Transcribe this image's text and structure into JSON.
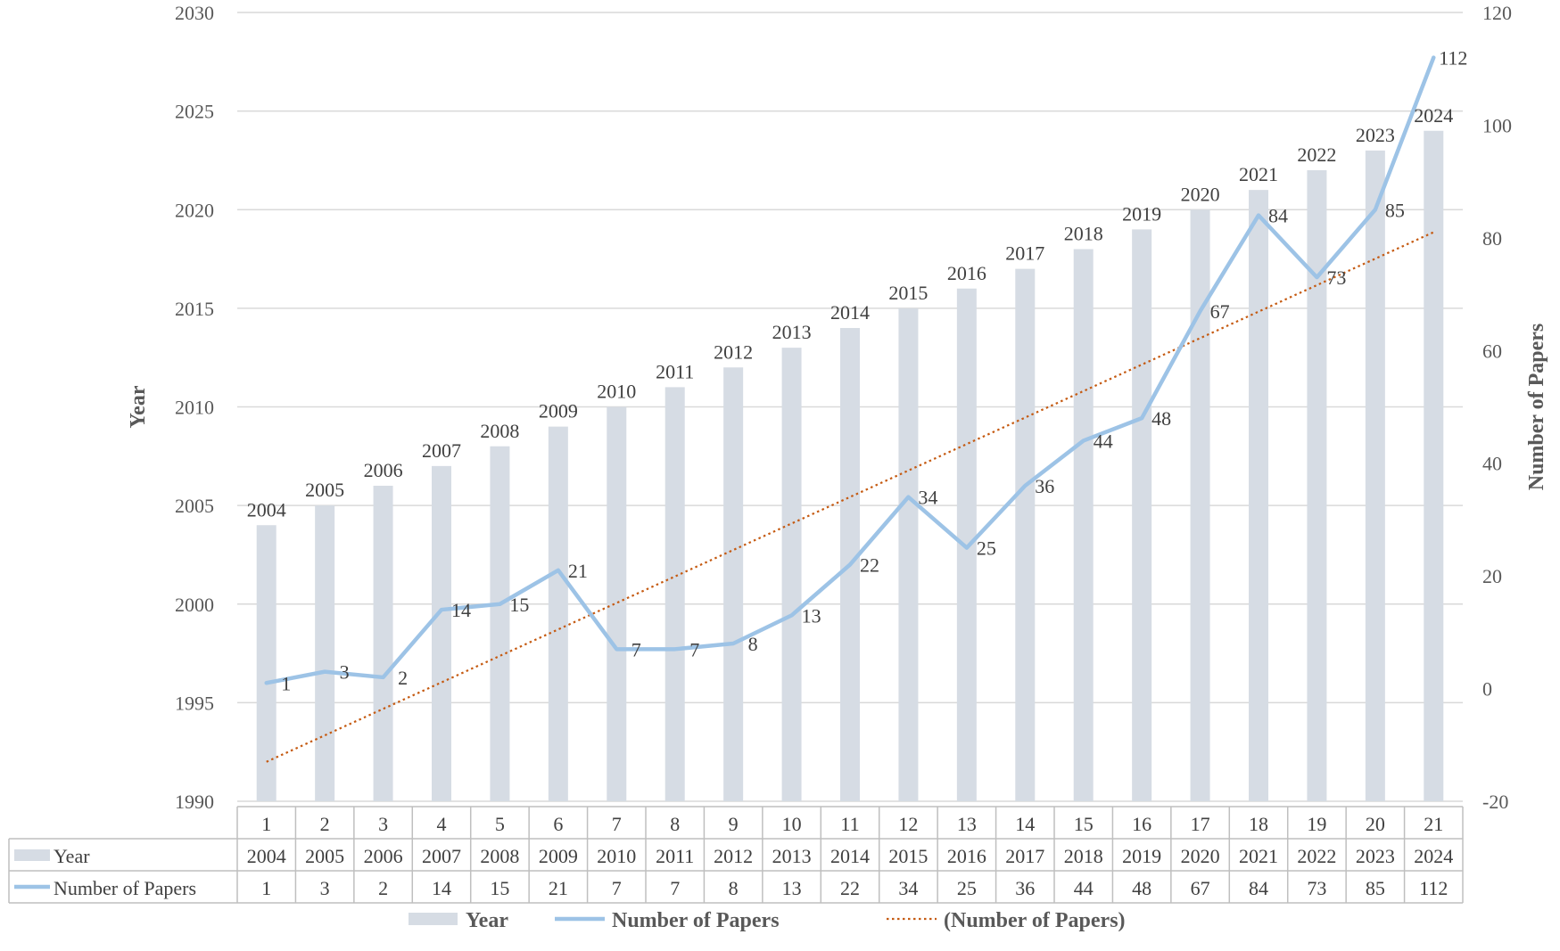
{
  "chart_data": {
    "type": "bar",
    "categories": [
      "1",
      "2",
      "3",
      "4",
      "5",
      "6",
      "7",
      "8",
      "9",
      "10",
      "11",
      "12",
      "13",
      "14",
      "15",
      "16",
      "17",
      "18",
      "19",
      "20",
      "21"
    ],
    "series": [
      {
        "name": "Year",
        "type": "bar",
        "axis": "left",
        "values": [
          2004,
          2005,
          2006,
          2007,
          2008,
          2009,
          2010,
          2011,
          2012,
          2013,
          2014,
          2015,
          2016,
          2017,
          2018,
          2019,
          2020,
          2021,
          2022,
          2023,
          2024
        ]
      },
      {
        "name": "Number of Papers",
        "type": "line",
        "axis": "right",
        "values": [
          1,
          3,
          2,
          14,
          15,
          21,
          7,
          7,
          8,
          13,
          22,
          34,
          25,
          36,
          44,
          48,
          67,
          84,
          73,
          85,
          112
        ]
      },
      {
        "name": "(Number of Papers)",
        "type": "trendline",
        "axis": "right",
        "values": [
          -13,
          -8.3,
          -3.6,
          1.1,
          5.8,
          10.5,
          15.2,
          19.9,
          24.6,
          29.3,
          34,
          38.7,
          43.4,
          48.1,
          52.8,
          57.5,
          62.2,
          66.9,
          71.6,
          76.3,
          81
        ]
      }
    ],
    "y_left": {
      "label": "Year",
      "ylim": [
        1990,
        2030
      ],
      "ticks": [
        "1990",
        "1995",
        "2000",
        "2005",
        "2010",
        "2015",
        "2020",
        "2025",
        "2030"
      ]
    },
    "y_right": {
      "label": "Number of Papers",
      "ylim": [
        -20,
        120
      ],
      "ticks": [
        "-20",
        "0",
        "20",
        "40",
        "60",
        "80",
        "100",
        "120"
      ]
    },
    "title": "",
    "xlabel": "",
    "grid": true,
    "data_table": {
      "rows": [
        {
          "label": "Year",
          "values": [
            "2004",
            "2005",
            "2006",
            "2007",
            "2008",
            "2009",
            "2010",
            "2011",
            "2012",
            "2013",
            "2014",
            "2015",
            "2016",
            "2017",
            "2018",
            "2019",
            "2020",
            "2021",
            "2022",
            "2023",
            "2024"
          ]
        },
        {
          "label": "Number of Papers",
          "values": [
            "1",
            "3",
            "2",
            "14",
            "15",
            "21",
            "7",
            "7",
            "8",
            "13",
            "22",
            "34",
            "25",
            "36",
            "44",
            "48",
            "67",
            "84",
            "73",
            "85",
            "112"
          ]
        }
      ]
    },
    "legend": {
      "position": "bottom",
      "entries": [
        "Year",
        "Number of Papers",
        "(Number of Papers)"
      ]
    },
    "colors": {
      "bar": "#d6dce4",
      "line": "#9dc3e6",
      "trend": "#c55a11",
      "grid": "#d9d9d9",
      "table_border": "#bfbfbf"
    }
  }
}
